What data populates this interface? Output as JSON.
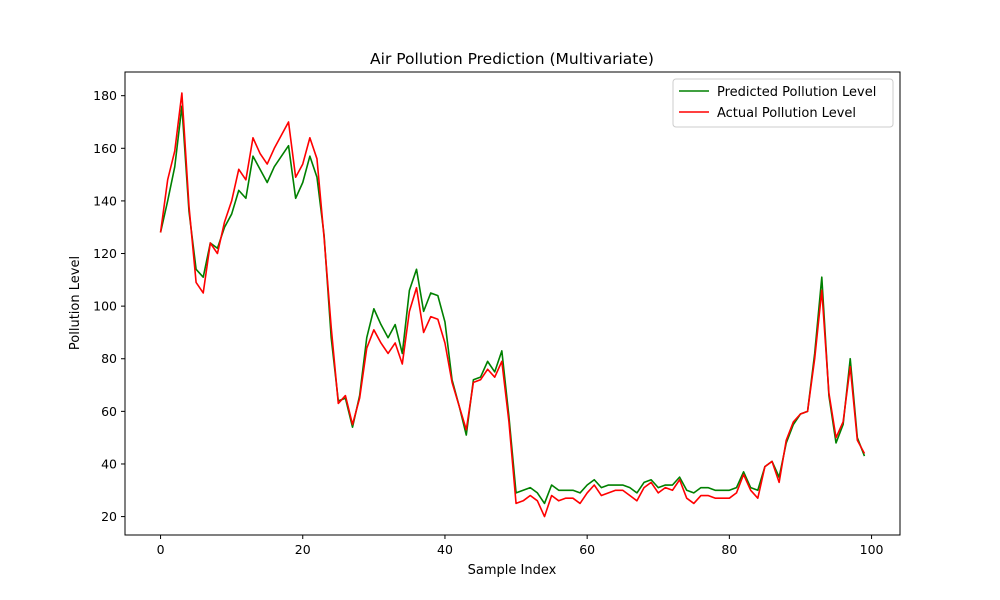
{
  "chart_data": {
    "type": "line",
    "title": "Air Pollution Prediction (Multivariate)",
    "xlabel": "Sample Index",
    "ylabel": "Pollution Level",
    "xlim": [
      -5,
      104
    ],
    "ylim": [
      13,
      189
    ],
    "xticks": [
      0,
      20,
      40,
      60,
      80,
      100
    ],
    "yticks": [
      20,
      40,
      60,
      80,
      100,
      120,
      140,
      160,
      180
    ],
    "grid": false,
    "legend_position": "upper-right",
    "x": [
      0,
      1,
      2,
      3,
      4,
      5,
      6,
      7,
      8,
      9,
      10,
      11,
      12,
      13,
      14,
      15,
      16,
      17,
      18,
      19,
      20,
      21,
      22,
      23,
      24,
      25,
      26,
      27,
      28,
      29,
      30,
      31,
      32,
      33,
      34,
      35,
      36,
      37,
      38,
      39,
      40,
      41,
      42,
      43,
      44,
      45,
      46,
      47,
      48,
      49,
      50,
      51,
      52,
      53,
      54,
      55,
      56,
      57,
      58,
      59,
      60,
      61,
      62,
      63,
      64,
      65,
      66,
      67,
      68,
      69,
      70,
      71,
      72,
      73,
      74,
      75,
      76,
      77,
      78,
      79,
      80,
      81,
      82,
      83,
      84,
      85,
      86,
      87,
      88,
      89,
      90,
      91,
      92,
      93,
      94,
      95,
      96,
      97,
      98,
      99
    ],
    "series": [
      {
        "name": "Predicted Pollution Level",
        "color": "#008000",
        "values": [
          128,
          140,
          153,
          176,
          136,
          114,
          111,
          124,
          122,
          130,
          135,
          144,
          141,
          157,
          152,
          147,
          153,
          157,
          161,
          141,
          147,
          157,
          149,
          127,
          88,
          64,
          65,
          54,
          66,
          88,
          99,
          93,
          88,
          93,
          82,
          106,
          114,
          98,
          105,
          104,
          94,
          72,
          62,
          51,
          72,
          73,
          79,
          75,
          83,
          58,
          29,
          30,
          31,
          29,
          25,
          32,
          30,
          30,
          30,
          29,
          32,
          34,
          31,
          32,
          32,
          32,
          31,
          29,
          33,
          34,
          31,
          32,
          32,
          35,
          30,
          29,
          31,
          31,
          30,
          30,
          30,
          31,
          37,
          31,
          30,
          39,
          41,
          35,
          48,
          55,
          59,
          60,
          82,
          111,
          66,
          48,
          55,
          80,
          50,
          43
        ]
      },
      {
        "name": "Actual Pollution Level",
        "color": "#ff0000",
        "values": [
          128,
          148,
          159,
          181,
          138,
          109,
          105,
          124,
          120,
          132,
          140,
          152,
          148,
          164,
          158,
          154,
          160,
          165,
          170,
          149,
          154,
          164,
          156,
          126,
          92,
          63,
          66,
          55,
          65,
          84,
          91,
          86,
          82,
          86,
          78,
          98,
          107,
          90,
          96,
          95,
          86,
          71,
          62,
          53,
          71,
          72,
          76,
          73,
          79,
          56,
          25,
          26,
          28,
          26,
          20,
          28,
          26,
          27,
          27,
          25,
          29,
          32,
          28,
          29,
          30,
          30,
          28,
          26,
          31,
          33,
          29,
          31,
          30,
          34,
          27,
          25,
          28,
          28,
          27,
          27,
          27,
          29,
          36,
          30,
          27,
          39,
          41,
          33,
          49,
          56,
          59,
          60,
          80,
          106,
          67,
          50,
          56,
          77,
          49,
          44
        ]
      }
    ]
  }
}
